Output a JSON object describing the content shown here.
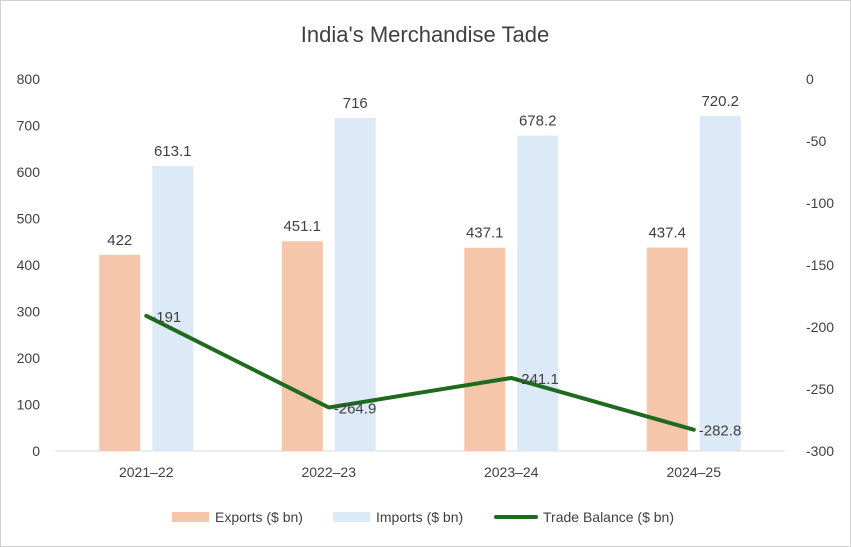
{
  "chart_data": {
    "type": "bar",
    "title": "India's Merchandise Tade",
    "categories": [
      "2021–22",
      "2022–23",
      "2023–24",
      "2024–25"
    ],
    "series": [
      {
        "name": "Exports ($ bn)",
        "kind": "bar",
        "axis": "left",
        "color": "#F5C6A9",
        "values": [
          422,
          451.1,
          437.1,
          437.4
        ],
        "labels": [
          "422",
          "451.1",
          "437.1",
          "437.4"
        ]
      },
      {
        "name": "Imports ($ bn)",
        "kind": "bar",
        "axis": "left",
        "color": "#DCE9F6",
        "values": [
          613.1,
          716,
          678.2,
          720.2
        ],
        "labels": [
          "613.1",
          "716",
          "678.2",
          "720.2"
        ]
      },
      {
        "name": "Trade Balance ($ bn)",
        "kind": "line",
        "axis": "right",
        "color": "#1E6B1E",
        "values": [
          -191,
          -264.9,
          -241.1,
          -282.8
        ],
        "labels": [
          "-191",
          "-264.9",
          "-241.1",
          "-282.8"
        ]
      }
    ],
    "y_left": {
      "min": 0,
      "max": 800,
      "ticks": [
        "0",
        "100",
        "200",
        "300",
        "400",
        "500",
        "600",
        "700",
        "800"
      ]
    },
    "y_right": {
      "min": -300,
      "max": 0,
      "ticks": [
        "-300",
        "-250",
        "-200",
        "-150",
        "-100",
        "-50",
        "0"
      ]
    },
    "grid": false,
    "legend": "bottom"
  }
}
